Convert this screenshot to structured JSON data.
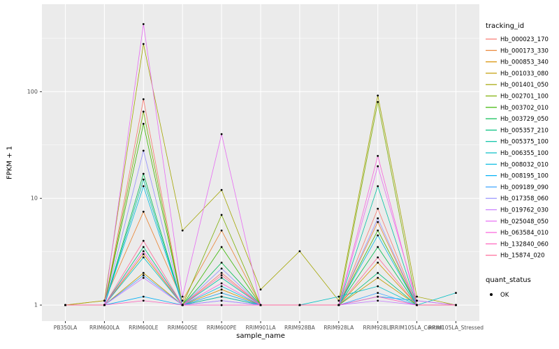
{
  "chart_data": {
    "type": "line",
    "title": "",
    "xlabel": "sample_name",
    "ylabel": "FPKM + 1",
    "y_scale": "log10",
    "y_ticks": [
      1,
      10,
      100
    ],
    "y_minor_ticks": [
      3.162,
      31.623,
      316.228
    ],
    "y_log_range": [
      -0.15,
      2.82
    ],
    "panel_bg": "#EBEBEB",
    "grid_color": "#FFFFFF",
    "point_color": "#000000",
    "tick_text_color": "#4D4D4D",
    "categories": [
      "PB350LA",
      "RRIM600LA",
      "RRIM600LE",
      "RRIM600SE",
      "RRIM600PE",
      "RRIM901LA",
      "RRIM928BA",
      "RRIM928LA",
      "RRIM928LE",
      "RRIM105LA_Control",
      "RRIM105LA_Stressed"
    ],
    "series": [
      {
        "name": "Hb_000023_170",
        "color": "#F8766D",
        "values": [
          1,
          1,
          85,
          1,
          2.0,
          1,
          1,
          1,
          8,
          1,
          1
        ]
      },
      {
        "name": "Hb_000173_330",
        "color": "#EA8331",
        "values": [
          1,
          1.1,
          7.5,
          1.1,
          5.0,
          1,
          1,
          1,
          6,
          1,
          1
        ]
      },
      {
        "name": "Hb_000853_340",
        "color": "#D89000",
        "values": [
          1,
          1,
          3.0,
          1,
          1.4,
          1,
          1,
          1,
          2.5,
          1,
          1
        ]
      },
      {
        "name": "Hb_001033_080",
        "color": "#C09B00",
        "values": [
          1,
          1,
          2.0,
          1,
          1.2,
          1,
          1,
          1,
          1.8,
          1,
          1
        ]
      },
      {
        "name": "Hb_001401_050",
        "color": "#A3A500",
        "values": [
          1,
          1.1,
          280,
          5.0,
          12,
          1.4,
          3.2,
          1.1,
          92,
          1.2,
          1
        ]
      },
      {
        "name": "Hb_002701_100",
        "color": "#7CAE00",
        "values": [
          1,
          1,
          65,
          1,
          7.0,
          1,
          1,
          1,
          80,
          1,
          1
        ]
      },
      {
        "name": "Hb_003702_010",
        "color": "#39B600",
        "values": [
          1,
          1,
          50,
          1,
          3.5,
          1,
          1,
          1,
          5.0,
          1,
          1
        ]
      },
      {
        "name": "Hb_003729_050",
        "color": "#00BB4E",
        "values": [
          1,
          1,
          17,
          1,
          2.5,
          1,
          1,
          1,
          3.5,
          1,
          1
        ]
      },
      {
        "name": "Hb_005357_210",
        "color": "#00BF7D",
        "values": [
          1,
          1,
          3.5,
          1,
          1.3,
          1,
          1,
          1,
          2.0,
          1,
          1
        ]
      },
      {
        "name": "Hb_005375_100",
        "color": "#00C1A3",
        "values": [
          1,
          1,
          15,
          1,
          1.8,
          1,
          1,
          1,
          13,
          1,
          1
        ]
      },
      {
        "name": "Hb_006355_100",
        "color": "#00BFC4",
        "values": [
          1,
          1,
          2.8,
          1,
          1.2,
          1,
          1,
          1.2,
          1.5,
          1,
          1.3
        ]
      },
      {
        "name": "Hb_008032_010",
        "color": "#00BAE0",
        "values": [
          1,
          1,
          13,
          1,
          1.5,
          1,
          1,
          1,
          4.5,
          1,
          1
        ]
      },
      {
        "name": "Hb_008195_100",
        "color": "#00B0F6",
        "values": [
          1,
          1,
          1.2,
          1,
          1.1,
          1,
          1,
          1,
          1.2,
          1.1,
          1
        ]
      },
      {
        "name": "Hb_009189_090",
        "color": "#35A2FF",
        "values": [
          1,
          1,
          1.9,
          1,
          1.3,
          1,
          1,
          1,
          1.3,
          1,
          1
        ]
      },
      {
        "name": "Hb_017358_060",
        "color": "#9590FF",
        "values": [
          1,
          1,
          28,
          1,
          2.2,
          1,
          1,
          1,
          6.5,
          1,
          1
        ]
      },
      {
        "name": "Hb_019762_030",
        "color": "#C77CFF",
        "values": [
          1,
          1,
          1.8,
          1,
          1.1,
          1,
          1,
          1,
          1.1,
          1,
          1
        ]
      },
      {
        "name": "Hb_025048_050",
        "color": "#E76BF3",
        "values": [
          1,
          1,
          430,
          1.2,
          40,
          1,
          1,
          1,
          20,
          1.1,
          1
        ]
      },
      {
        "name": "Hb_063584_010",
        "color": "#FA62DB",
        "values": [
          1,
          1,
          3.2,
          1,
          1.6,
          1,
          1,
          1,
          25,
          1,
          1
        ]
      },
      {
        "name": "Hb_132840_060",
        "color": "#FF62BC",
        "values": [
          1,
          1,
          1.1,
          1,
          1,
          1,
          1,
          1,
          1.2,
          1,
          1
        ]
      },
      {
        "name": "Hb_15874_020",
        "color": "#FF6A98",
        "values": [
          1,
          1,
          4.0,
          1,
          1.9,
          1,
          1,
          1,
          2.8,
          1,
          1
        ]
      }
    ],
    "legend": {
      "color_title": "tracking_id",
      "shape_title": "quant_status",
      "shape_entries": [
        {
          "label": "OK"
        }
      ]
    }
  }
}
